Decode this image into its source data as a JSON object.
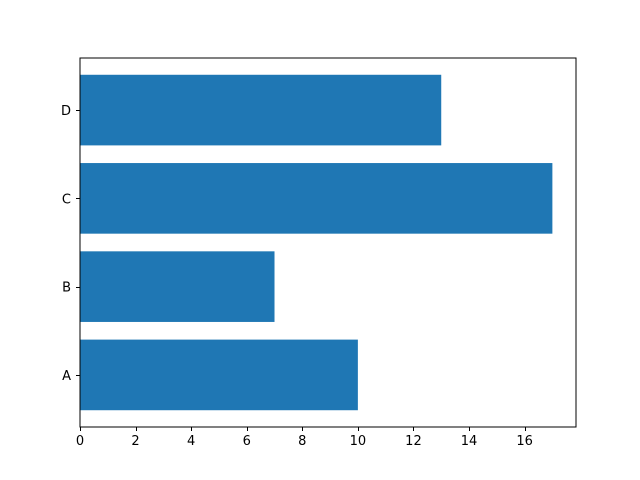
{
  "chart_data": {
    "type": "bar",
    "orientation": "horizontal",
    "categories": [
      "A",
      "B",
      "C",
      "D"
    ],
    "values": [
      10,
      7,
      17,
      13
    ],
    "xlim": [
      0,
      17.85
    ],
    "xticks": [
      0,
      2,
      4,
      6,
      8,
      10,
      12,
      14,
      16
    ],
    "title": "",
    "xlabel": "",
    "ylabel": "",
    "grid": false,
    "legend": "none",
    "bar_color": "#1f77b4"
  }
}
